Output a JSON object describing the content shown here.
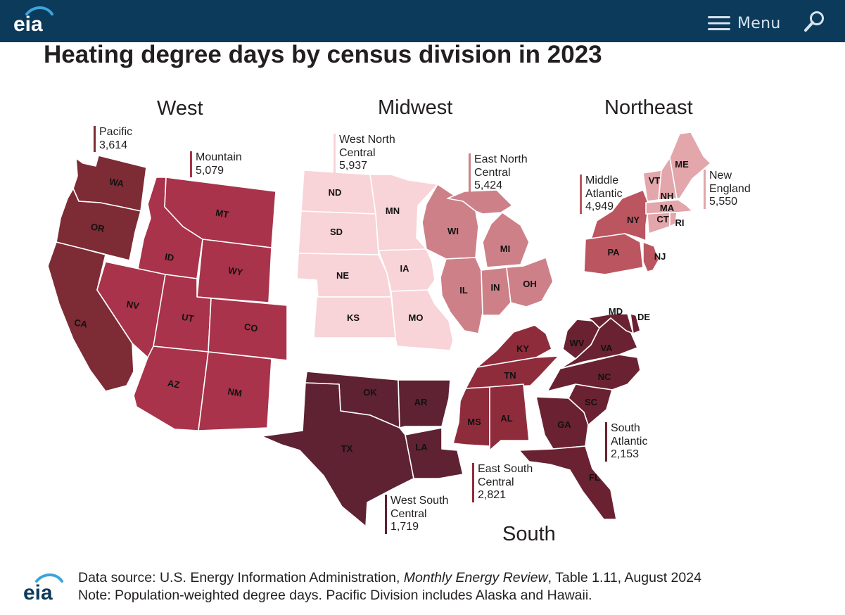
{
  "header": {
    "logo_text": "eia",
    "menu_label": "Menu"
  },
  "title": "Heating degree days by census division in 2023",
  "regions": {
    "west": "West",
    "midwest": "Midwest",
    "northeast": "Northeast",
    "south": "South"
  },
  "divisions": {
    "pacific": {
      "line1": "Pacific",
      "line2": "",
      "value": "3,614",
      "color": "#7d2b35"
    },
    "mountain": {
      "line1": "Mountain",
      "line2": "",
      "value": "5,079",
      "color": "#a8334a"
    },
    "wnc": {
      "line1": "West North",
      "line2": "Central",
      "value": "5,937",
      "color": "#f8d3d8"
    },
    "enc": {
      "line1": "East North",
      "line2": "Central",
      "value": "5,424",
      "color": "#cd8088"
    },
    "ma": {
      "line1": "Middle",
      "line2": "Atlantic",
      "value": "4,949",
      "color": "#bb5560"
    },
    "ne": {
      "line1": "New",
      "line2": "England",
      "value": "5,550",
      "color": "#e2a6ab"
    },
    "sa": {
      "line1": "South",
      "line2": "Atlantic",
      "value": "2,153",
      "color": "#6a2232"
    },
    "esc": {
      "line1": "East South",
      "line2": "Central",
      "value": "2,821",
      "color": "#8f2c3c"
    },
    "wsc": {
      "line1": "West South",
      "line2": "Central",
      "value": "1,719",
      "color": "#5e2232"
    }
  },
  "states": {
    "WA": "WA",
    "OR": "OR",
    "CA": "CA",
    "ID": "ID",
    "MT": "MT",
    "WY": "WY",
    "NV": "NV",
    "UT": "UT",
    "CO": "CO",
    "AZ": "AZ",
    "NM": "NM",
    "ND": "ND",
    "SD": "SD",
    "NE": "NE",
    "KS": "KS",
    "MN": "MN",
    "IA": "IA",
    "MO": "MO",
    "WI": "WI",
    "MI": "MI",
    "IL": "IL",
    "IN": "IN",
    "OH": "OH",
    "NY": "NY",
    "PA": "PA",
    "NJ": "NJ",
    "VT": "VT",
    "NH": "NH",
    "ME": "ME",
    "MA": "MA",
    "CT": "CT",
    "RI": "RI",
    "OK": "OK",
    "TX": "TX",
    "AR": "AR",
    "LA": "LA",
    "KY": "KY",
    "TN": "TN",
    "MS": "MS",
    "AL": "AL",
    "WV": "WV",
    "VA": "VA",
    "MD": "MD",
    "DE": "DE",
    "NC": "NC",
    "SC": "SC",
    "GA": "GA",
    "FL": "FL"
  },
  "footer": {
    "logo_text": "eia",
    "source_prefix": "Data source: U.S. Energy Information Administration, ",
    "source_italic": "Monthly Energy Review",
    "source_suffix": ", Table 1.11, August 2024",
    "note": "Note: Population-weighted degree days. Pacific Division includes Alaska and Hawaii."
  }
}
